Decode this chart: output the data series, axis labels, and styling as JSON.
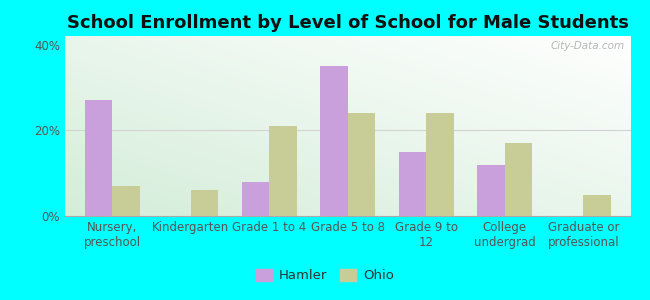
{
  "title": "School Enrollment by Level of School for Male Students",
  "categories": [
    "Nursery,\npreschool",
    "Kindergarten",
    "Grade 1 to 4",
    "Grade 5 to 8",
    "Grade 9 to\n12",
    "College\nundergrad",
    "Graduate or\nprofessional"
  ],
  "hamler_values": [
    27,
    0,
    8,
    35,
    15,
    12,
    0
  ],
  "ohio_values": [
    7,
    6,
    21,
    24,
    24,
    17,
    5
  ],
  "hamler_color": "#c9a0dc",
  "ohio_color": "#c8cc96",
  "ylim": [
    0,
    42
  ],
  "yticks": [
    0,
    20,
    40
  ],
  "ytick_labels": [
    "0%",
    "20%",
    "40%"
  ],
  "bar_width": 0.35,
  "background_color": "#00ffff",
  "legend_labels": [
    "Hamler",
    "Ohio"
  ],
  "watermark": "City-Data.com",
  "title_fontsize": 13,
  "axis_label_fontsize": 8.5
}
